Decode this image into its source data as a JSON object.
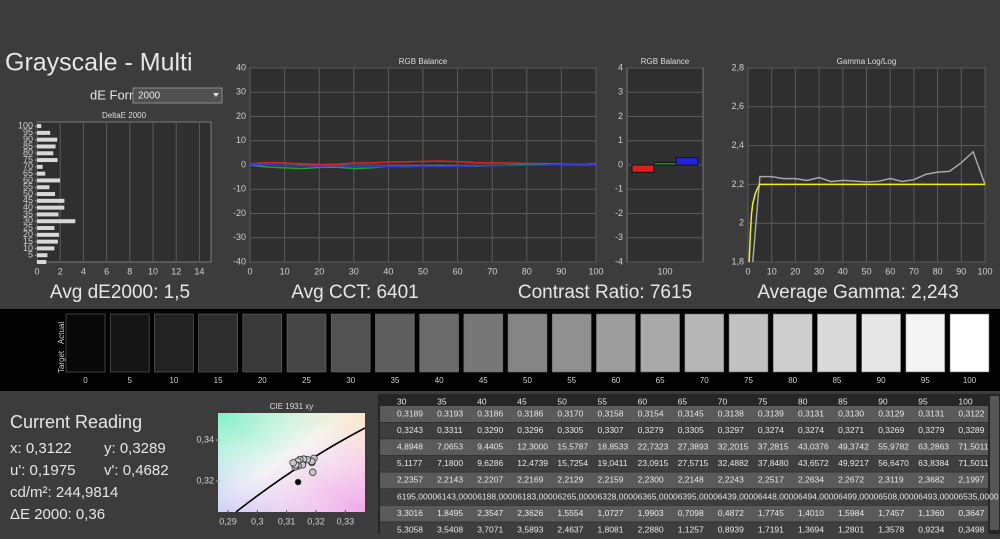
{
  "title": "Grayscale - Multi",
  "de_formula": {
    "label": "dE Formula:",
    "value": "2000"
  },
  "chart_data": [
    {
      "type": "hbar",
      "title": "DeltaE 2000",
      "y": [
        0,
        5,
        10,
        15,
        20,
        25,
        30,
        35,
        40,
        45,
        50,
        55,
        60,
        65,
        70,
        75,
        80,
        85,
        90,
        95,
        100
      ],
      "values": [
        0.8,
        0.9,
        1.5,
        1.8,
        1.9,
        1.5,
        3.3016,
        1.8495,
        2.3547,
        2.3626,
        1.5554,
        1.0727,
        1.9903,
        0.7098,
        0.4872,
        1.7745,
        1.401,
        1.5984,
        1.7457,
        1.136,
        0.3647
      ],
      "color": "#d8d8d8",
      "xlim": [
        0,
        15
      ],
      "xticks": [
        0,
        2,
        4,
        6,
        8,
        10,
        12,
        14
      ],
      "ylim": [
        0,
        103
      ],
      "yticks": [
        5,
        10,
        15,
        20,
        25,
        30,
        35,
        40,
        45,
        50,
        55,
        60,
        65,
        70,
        75,
        80,
        85,
        90,
        95,
        100
      ],
      "grid": "x"
    },
    {
      "type": "line",
      "title": "RGB Balance",
      "x": [
        0,
        5,
        10,
        15,
        20,
        25,
        30,
        35,
        40,
        45,
        50,
        55,
        60,
        65,
        70,
        75,
        80,
        85,
        90,
        95,
        100
      ],
      "series": [
        {
          "color": "#e02424",
          "values": [
            0.5,
            1,
            0.8,
            0.5,
            0.2,
            0.3,
            0.8,
            0.9,
            1.2,
            1.3,
            1.5,
            1.6,
            1.4,
            1.0,
            0.9,
            0.8,
            0.6,
            0.5,
            0.4,
            0.3,
            0.6
          ]
        },
        {
          "color": "#22a024",
          "values": [
            0,
            -0.8,
            -1.2,
            -1.5,
            -1.0,
            -0.9,
            -1.5,
            -1.2,
            -0.5,
            -0.6,
            -0.3,
            -0.2,
            -0.4,
            -0.5,
            -0.3,
            0,
            0.2,
            0.3,
            0.4,
            0.2,
            0.3
          ]
        },
        {
          "color": "#3434e6",
          "values": [
            0.3,
            0.2,
            -0.2,
            -0.4,
            -0.5,
            -0.3,
            -0.8,
            -0.7,
            -0.6,
            -0.8,
            -0.5,
            -0.6,
            -0.5,
            -0.4,
            -0.3,
            -0.2,
            -0.1,
            0,
            0.2,
            0.4,
            0.2
          ]
        }
      ],
      "xlim": [
        0,
        100
      ],
      "xticks": [
        0,
        10,
        20,
        30,
        40,
        50,
        60,
        70,
        80,
        90,
        100
      ],
      "ylim": [
        -40,
        40
      ],
      "yticks": [
        -40,
        -30,
        -20,
        -10,
        0,
        10,
        20,
        30,
        40
      ],
      "grid": "both"
    },
    {
      "type": "bar",
      "title": "RGB Balance",
      "categories": [
        "100"
      ],
      "series": [
        {
          "color": "#e01c1c",
          "values": [
            -0.3
          ]
        },
        {
          "color": "#1ca01c",
          "values": [
            0.1
          ]
        },
        {
          "color": "#2424e0",
          "values": [
            0.3
          ]
        }
      ],
      "ylim": [
        -4,
        4
      ],
      "yticks": [
        -4,
        -3,
        -2,
        -1,
        0,
        1,
        2,
        3,
        4
      ],
      "grid": "both"
    },
    {
      "type": "line",
      "title": "Gamma Log/Log",
      "series": [
        {
          "color": "#a8a8a8",
          "x": [
            2,
            5,
            10,
            15,
            20,
            25,
            30,
            35,
            40,
            45,
            50,
            55,
            60,
            65,
            70,
            75,
            80,
            85,
            90,
            95,
            100
          ],
          "values": [
            1.8,
            2.24,
            2.24,
            2.23,
            2.23,
            2.22,
            2.2357,
            2.2143,
            2.2207,
            2.2169,
            2.2129,
            2.2159,
            2.23,
            2.2148,
            2.2243,
            2.2517,
            2.2634,
            2.2672,
            2.3119,
            2.3682,
            2.1997
          ]
        },
        {
          "color": "#f2f200",
          "x": [
            0.5,
            1,
            1.5,
            2,
            3,
            4,
            5,
            100
          ],
          "values": [
            1.8,
            1.95,
            2.05,
            2.1,
            2.15,
            2.18,
            2.2,
            2.2
          ]
        }
      ],
      "xlim": [
        0,
        100
      ],
      "xticks": [
        0,
        10,
        20,
        30,
        40,
        50,
        60,
        70,
        80,
        90,
        100
      ],
      "ylim": [
        1.8,
        2.8
      ],
      "yticks": [
        {
          "value": 1.8,
          "label": "1,8"
        },
        2,
        {
          "value": 2.2,
          "label": "2,2"
        },
        {
          "value": 2.4,
          "label": "2,4"
        },
        {
          "value": 2.6,
          "label": "2,6"
        },
        {
          "value": 2.8,
          "label": "2,8"
        }
      ],
      "grid": "both"
    },
    {
      "type": "scatter",
      "title": "CIE 1931 xy",
      "series": [
        {
          "color": "#c8c8c8",
          "x": [
            0.3189,
            0.3193,
            0.3186,
            0.3186,
            0.317,
            0.3158,
            0.3154,
            0.3145,
            0.3138,
            0.3139,
            0.3131,
            0.313,
            0.3129,
            0.3131,
            0.3122
          ],
          "y": [
            0.3243,
            0.3311,
            0.329,
            0.3296,
            0.3305,
            0.3307,
            0.3279,
            0.3305,
            0.3297,
            0.3274,
            0.3274,
            0.3271,
            0.3269,
            0.3279,
            0.3289
          ]
        },
        {
          "color": "#000000",
          "x": [
            0.3139
          ],
          "y": [
            0.3195
          ]
        }
      ],
      "xlim": [
        0.2866,
        0.3367
      ],
      "xticks": [
        {
          "value": 0.29,
          "label": "0,29"
        },
        {
          "value": 0.3,
          "label": "0,3"
        },
        {
          "value": 0.31,
          "label": "0,31"
        },
        {
          "value": 0.32,
          "label": "0,32"
        },
        {
          "value": 0.33,
          "label": "0,33"
        }
      ],
      "ylim": [
        0.3049,
        0.3532
      ],
      "yticks": [
        {
          "value": 0.32,
          "label": "0,32"
        },
        {
          "value": 0.34,
          "label": "0,34"
        }
      ],
      "grid": "none"
    }
  ],
  "stats": [
    "Avg dE2000: 1,5",
    "Avg CCT: 6401",
    "Contrast Ratio: 7615",
    "Average Gamma: 2,243"
  ],
  "swatches": {
    "row_labels": [
      "Actual",
      "Target"
    ],
    "levels": [
      0,
      5,
      10,
      15,
      20,
      25,
      30,
      35,
      40,
      45,
      50,
      55,
      60,
      65,
      70,
      75,
      80,
      85,
      90,
      95,
      100
    ]
  },
  "current_reading": {
    "title": "Current Reading",
    "x": "x: 0,3122",
    "y": "y: 0,3289",
    "u": "u': 0,1975",
    "v": "v': 0,4682",
    "lum": "cd/m²: 244,9814",
    "de": "ΔE 2000: 0,36"
  },
  "table": {
    "header": [
      "30",
      "35",
      "40",
      "45",
      "50",
      "55",
      "60",
      "65",
      "70",
      "75",
      "80",
      "85",
      "90",
      "95",
      "100"
    ],
    "rows": [
      [
        "0,3189",
        "0,3193",
        "0,3186",
        "0,3186",
        "0,3170",
        "0,3158",
        "0,3154",
        "0,3145",
        "0,3138",
        "0,3139",
        "0,3131",
        "0,3130",
        "0,3129",
        "0,3131",
        "0,3122"
      ],
      [
        "0,3243",
        "0,3311",
        "0,3290",
        "0,3296",
        "0,3305",
        "0,3307",
        "0,3279",
        "0,3305",
        "0,3297",
        "0,3274",
        "0,3274",
        "0,3271",
        "0,3269",
        "0,3279",
        "0,3289"
      ],
      [
        "4,8948",
        "7,0653",
        "9,4405",
        "12,3000",
        "15,5787",
        "18,8533",
        "22,7323",
        "27,3893",
        "32,2015",
        "37,2815",
        "43,0376",
        "49,3742",
        "55,9782",
        "63,2863",
        "71,5011"
      ],
      [
        "5,1177",
        "7,1800",
        "9,6286",
        "12,4739",
        "15,7254",
        "19,0411",
        "23,0915",
        "27,5715",
        "32,4882",
        "37,8480",
        "43,6572",
        "49,9217",
        "56,6470",
        "63,8384",
        "71,5011"
      ],
      [
        "2,2357",
        "2,2143",
        "2,2207",
        "2,2169",
        "2,2129",
        "2,2159",
        "2,2300",
        "2,2148",
        "2,2243",
        "2,2517",
        "2,2634",
        "2,2672",
        "2,3119",
        "2,3682",
        "2,1997"
      ],
      [
        "6195,0000",
        "6143,0000",
        "6188,0000",
        "6183,0000",
        "6265,0000",
        "6328,0000",
        "6365,0000",
        "6395,0000",
        "6439,0000",
        "6448,0000",
        "6494,0000",
        "6499,0000",
        "6508,0000",
        "6493,0000",
        "6535,0000"
      ],
      [
        "3,3016",
        "1,8495",
        "2,3547",
        "2,3626",
        "1,5554",
        "1,0727",
        "1,9903",
        "0,7098",
        "0,4872",
        "1,7745",
        "1,4010",
        "1,5984",
        "1,7457",
        "1,1360",
        "0,3647"
      ],
      [
        "5,3058",
        "3,5408",
        "3,7071",
        "3,5893",
        "2,4637",
        "1,8081",
        "2,2880",
        "1,1257",
        "0,8939",
        "1,7191",
        "1,3694",
        "1,2801",
        "1,3578",
        "0,9234",
        "0,3498"
      ]
    ]
  }
}
